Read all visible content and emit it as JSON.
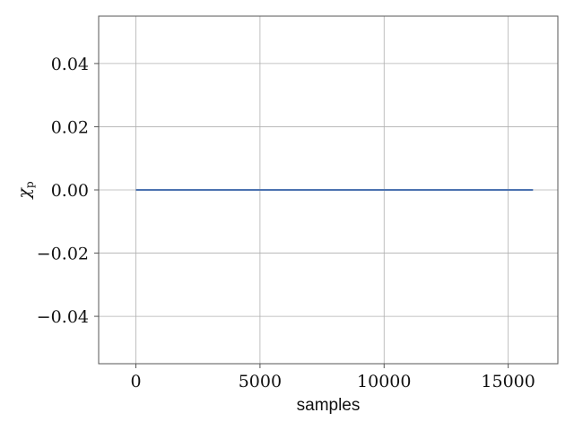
{
  "chart_data": {
    "type": "line",
    "title": "",
    "xlabel": "samples",
    "ylabel_main": "χ",
    "ylabel_sub": "p",
    "xlim": [
      -1500,
      17000
    ],
    "ylim": [
      -0.055,
      0.055
    ],
    "x_ticks": [
      0,
      5000,
      10000,
      15000
    ],
    "x_tick_labels": [
      "0",
      "5000",
      "10000",
      "15000"
    ],
    "y_ticks": [
      0.04,
      0.02,
      0.0,
      -0.02,
      -0.04
    ],
    "y_tick_labels": [
      "0.04",
      "0.02",
      "0.00",
      "−0.02",
      "−0.04"
    ],
    "grid": true,
    "series": [
      {
        "color": "#4c72b0",
        "x": [
          0,
          16000
        ],
        "y": [
          0.0,
          0.0
        ]
      }
    ]
  }
}
